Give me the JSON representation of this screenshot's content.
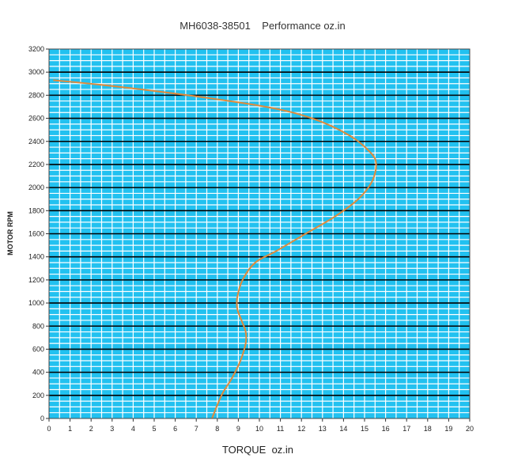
{
  "chart_data": {
    "type": "line",
    "title": "MH6038-38501    Performance oz.in",
    "xlabel": "TORQUE  oz.in",
    "ylabel": "MOTOR RPM",
    "xlim": [
      0,
      20
    ],
    "ylim": [
      0,
      3200
    ],
    "x_ticks": [
      "0",
      "1",
      "2",
      "3",
      "4",
      "5",
      "6",
      "7",
      "8",
      "9",
      "10",
      "11",
      "12",
      "13",
      "14",
      "15",
      "16",
      "17",
      "18",
      "19",
      "20"
    ],
    "y_ticks": [
      "0",
      "200",
      "400",
      "600",
      "800",
      "1000",
      "1200",
      "1400",
      "1600",
      "1800",
      "2000",
      "2200",
      "2400",
      "2600",
      "2800",
      "3000",
      "3200"
    ],
    "grid": true,
    "colors": {
      "plot_background": "#22c1f0",
      "minor_grid": "#ffffff",
      "major_grid": "#000000",
      "curve": "#e08a3a"
    },
    "series": [
      {
        "x": [
          7.75,
          8.2,
          8.7,
          9.1,
          9.35,
          9.35,
          9.15,
          8.95,
          8.95,
          9.2,
          9.8,
          10.8,
          12.2,
          13.6,
          14.7,
          15.35,
          15.55,
          15.3,
          14.3,
          12.5,
          10.3,
          6.6,
          3.0,
          0.2
        ],
        "y": [
          0,
          200,
          350,
          500,
          650,
          750,
          850,
          950,
          1050,
          1200,
          1350,
          1450,
          1600,
          1750,
          1900,
          2050,
          2200,
          2300,
          2450,
          2600,
          2700,
          2800,
          2880,
          2930
        ]
      }
    ]
  }
}
